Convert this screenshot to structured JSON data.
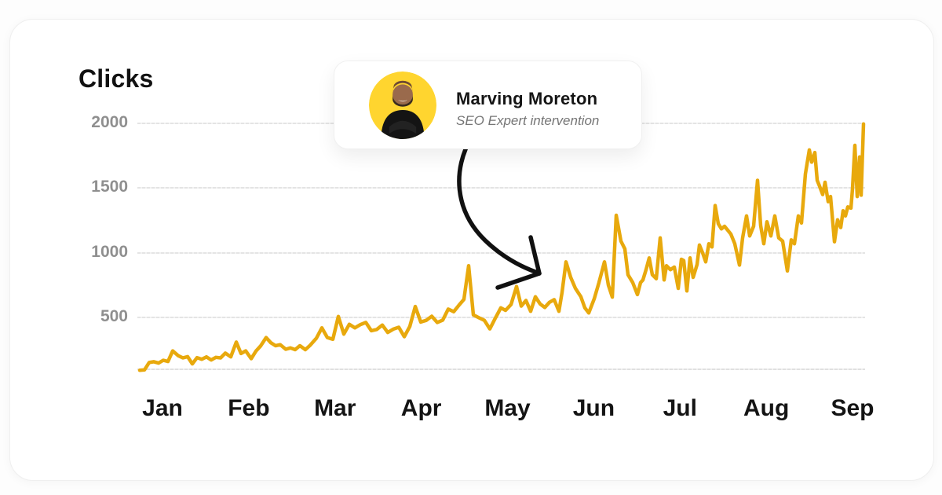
{
  "chart_data": {
    "type": "line",
    "title": "Clicks",
    "x_unit": "day (January through September)",
    "x_tick_labels": [
      "Jan",
      "Feb",
      "Mar",
      "Apr",
      "May",
      "Jun",
      "Jul",
      "Aug",
      "Sep"
    ],
    "y_ticks": [
      500,
      1000,
      1500,
      2000
    ],
    "y_tick_labels": [
      "500",
      "1000",
      "1500",
      "2000"
    ],
    "ylim": [
      100,
      2050
    ],
    "grid": "horizontal",
    "legend": "none",
    "line_color": "#E8A90D",
    "point_format": "[x_px, clicks_value]",
    "series": [
      {
        "name": "Clicks",
        "points": [
          [
            178,
            92
          ],
          [
            184,
            95
          ],
          [
            190,
            152
          ],
          [
            196,
            158
          ],
          [
            202,
            148
          ],
          [
            208,
            170
          ],
          [
            214,
            160
          ],
          [
            220,
            242
          ],
          [
            227,
            205
          ],
          [
            233,
            188
          ],
          [
            239,
            198
          ],
          [
            245,
            142
          ],
          [
            251,
            190
          ],
          [
            257,
            178
          ],
          [
            263,
            196
          ],
          [
            269,
            172
          ],
          [
            275,
            192
          ],
          [
            281,
            188
          ],
          [
            287,
            225
          ],
          [
            294,
            196
          ],
          [
            301,
            310
          ],
          [
            307,
            222
          ],
          [
            313,
            242
          ],
          [
            320,
            182
          ],
          [
            326,
            240
          ],
          [
            332,
            280
          ],
          [
            339,
            345
          ],
          [
            345,
            305
          ],
          [
            351,
            282
          ],
          [
            357,
            290
          ],
          [
            364,
            255
          ],
          [
            370,
            265
          ],
          [
            376,
            252
          ],
          [
            382,
            282
          ],
          [
            389,
            252
          ],
          [
            395,
            285
          ],
          [
            403,
            340
          ],
          [
            410,
            420
          ],
          [
            417,
            345
          ],
          [
            424,
            332
          ],
          [
            431,
            508
          ],
          [
            438,
            372
          ],
          [
            445,
            448
          ],
          [
            452,
            420
          ],
          [
            459,
            445
          ],
          [
            466,
            462
          ],
          [
            473,
            398
          ],
          [
            480,
            408
          ],
          [
            487,
            442
          ],
          [
            494,
            385
          ],
          [
            501,
            410
          ],
          [
            508,
            425
          ],
          [
            515,
            352
          ],
          [
            522,
            430
          ],
          [
            529,
            585
          ],
          [
            536,
            465
          ],
          [
            543,
            478
          ],
          [
            550,
            510
          ],
          [
            557,
            462
          ],
          [
            564,
            480
          ],
          [
            571,
            565
          ],
          [
            578,
            545
          ],
          [
            585,
            598
          ],
          [
            591,
            640
          ],
          [
            597,
            900
          ],
          [
            603,
            520
          ],
          [
            610,
            498
          ],
          [
            617,
            478
          ],
          [
            624,
            412
          ],
          [
            631,
            495
          ],
          [
            638,
            575
          ],
          [
            644,
            555
          ],
          [
            651,
            600
          ],
          [
            658,
            740
          ],
          [
            664,
            588
          ],
          [
            670,
            632
          ],
          [
            676,
            548
          ],
          [
            682,
            660
          ],
          [
            688,
            605
          ],
          [
            694,
            578
          ],
          [
            700,
            618
          ],
          [
            706,
            638
          ],
          [
            712,
            548
          ],
          [
            716,
            695
          ],
          [
            721,
            930
          ],
          [
            727,
            810
          ],
          [
            733,
            725
          ],
          [
            740,
            660
          ],
          [
            745,
            575
          ],
          [
            750,
            535
          ],
          [
            757,
            645
          ],
          [
            763,
            770
          ],
          [
            770,
            930
          ],
          [
            775,
            750
          ],
          [
            780,
            658
          ],
          [
            785,
            1290
          ],
          [
            791,
            1090
          ],
          [
            796,
            1030
          ],
          [
            800,
            830
          ],
          [
            806,
            770
          ],
          [
            812,
            677
          ],
          [
            816,
            770
          ],
          [
            819,
            790
          ],
          [
            823,
            870
          ],
          [
            827,
            960
          ],
          [
            831,
            830
          ],
          [
            836,
            800
          ],
          [
            841,
            1115
          ],
          [
            846,
            790
          ],
          [
            849,
            900
          ],
          [
            854,
            870
          ],
          [
            859,
            890
          ],
          [
            864,
            725
          ],
          [
            868,
            950
          ],
          [
            871,
            940
          ],
          [
            875,
            705
          ],
          [
            879,
            960
          ],
          [
            883,
            810
          ],
          [
            888,
            910
          ],
          [
            891,
            1060
          ],
          [
            895,
            1000
          ],
          [
            899,
            930
          ],
          [
            903,
            1070
          ],
          [
            907,
            1045
          ],
          [
            911,
            1365
          ],
          [
            915,
            1225
          ],
          [
            919,
            1185
          ],
          [
            923,
            1205
          ],
          [
            927,
            1175
          ],
          [
            931,
            1145
          ],
          [
            936,
            1070
          ],
          [
            942,
            905
          ],
          [
            946,
            1115
          ],
          [
            951,
            1285
          ],
          [
            955,
            1130
          ],
          [
            960,
            1205
          ],
          [
            965,
            1560
          ],
          [
            969,
            1210
          ],
          [
            973,
            1070
          ],
          [
            977,
            1240
          ],
          [
            982,
            1130
          ],
          [
            987,
            1285
          ],
          [
            992,
            1115
          ],
          [
            997,
            1090
          ],
          [
            1003,
            860
          ],
          [
            1008,
            1100
          ],
          [
            1012,
            1070
          ],
          [
            1017,
            1285
          ],
          [
            1021,
            1230
          ],
          [
            1026,
            1610
          ],
          [
            1031,
            1795
          ],
          [
            1034,
            1700
          ],
          [
            1038,
            1775
          ],
          [
            1041,
            1560
          ],
          [
            1044,
            1515
          ],
          [
            1048,
            1450
          ],
          [
            1051,
            1545
          ],
          [
            1055,
            1395
          ],
          [
            1058,
            1435
          ],
          [
            1063,
            1085
          ],
          [
            1067,
            1255
          ],
          [
            1071,
            1195
          ],
          [
            1074,
            1325
          ],
          [
            1077,
            1285
          ],
          [
            1080,
            1355
          ],
          [
            1084,
            1345
          ],
          [
            1086,
            1495
          ],
          [
            1089,
            1830
          ],
          [
            1092,
            1435
          ],
          [
            1095,
            1740
          ],
          [
            1097,
            1445
          ],
          [
            1100,
            1995
          ]
        ]
      }
    ]
  },
  "annotation": {
    "name": "Marving Moreton",
    "subtitle": "SEO Expert intervention",
    "avatar_bg": "#FFD52F",
    "arrow_icon": "hand-drawn-curved-arrow-pointing-down-right-to-line-near-may"
  }
}
